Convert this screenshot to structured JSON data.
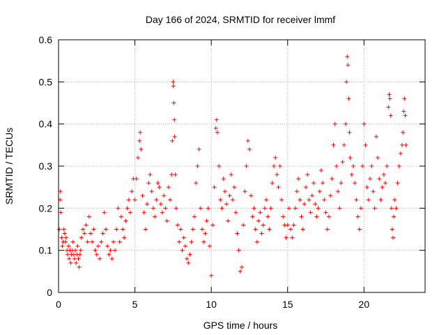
{
  "chart_data": {
    "type": "scatter",
    "title": "Day 166 of 2024, SRMTID for receiver lmmf",
    "xlabel": "GPS time / hours",
    "ylabel": "SRMTID / TECUs",
    "xlim": [
      0,
      24
    ],
    "ylim": [
      0,
      0.6
    ],
    "xticks": [
      0,
      5,
      10,
      15,
      20
    ],
    "yticks": [
      0,
      0.1,
      0.2,
      0.3,
      0.4,
      0.5,
      0.6
    ],
    "xtick_labels": [
      "0",
      "5",
      "10",
      "15",
      "20"
    ],
    "ytick_labels": [
      "0",
      "0.1",
      "0.2",
      "0.3",
      "0.4",
      "0.5",
      "0.6"
    ],
    "grid": true,
    "marker": "+",
    "marker_color": "#ff0000",
    "series": [
      {
        "name": "SRMTID",
        "points": [
          [
            0.05,
            0.15
          ],
          [
            0.1,
            0.22
          ],
          [
            0.12,
            0.24
          ],
          [
            0.15,
            0.19
          ],
          [
            0.2,
            0.13
          ],
          [
            0.25,
            0.11
          ],
          [
            0.3,
            0.12
          ],
          [
            0.35,
            0.15
          ],
          [
            0.4,
            0.14
          ],
          [
            0.45,
            0.12
          ],
          [
            0.5,
            0.13
          ],
          [
            0.55,
            0.1
          ],
          [
            0.6,
            0.09
          ],
          [
            0.65,
            0.11
          ],
          [
            0.7,
            0.08
          ],
          [
            0.75,
            0.1
          ],
          [
            0.8,
            0.07
          ],
          [
            0.85,
            0.09
          ],
          [
            0.9,
            0.1
          ],
          [
            0.95,
            0.12
          ],
          [
            1.0,
            0.09
          ],
          [
            1.05,
            0.08
          ],
          [
            1.1,
            0.1
          ],
          [
            1.15,
            0.07
          ],
          [
            1.2,
            0.09
          ],
          [
            1.25,
            0.11
          ],
          [
            1.3,
            0.08
          ],
          [
            1.35,
            0.06
          ],
          [
            1.4,
            0.09
          ],
          [
            1.45,
            0.1
          ],
          [
            1.5,
            0.13
          ],
          [
            1.6,
            0.15
          ],
          [
            1.7,
            0.14
          ],
          [
            1.8,
            0.16
          ],
          [
            1.9,
            0.12
          ],
          [
            2.0,
            0.18
          ],
          [
            2.1,
            0.14
          ],
          [
            2.2,
            0.12
          ],
          [
            2.3,
            0.15
          ],
          [
            2.4,
            0.1
          ],
          [
            2.5,
            0.09
          ],
          [
            2.6,
            0.11
          ],
          [
            2.7,
            0.08
          ],
          [
            2.8,
            0.12
          ],
          [
            2.9,
            0.14
          ],
          [
            3.0,
            0.19
          ],
          [
            3.1,
            0.15
          ],
          [
            3.2,
            0.11
          ],
          [
            3.3,
            0.09
          ],
          [
            3.4,
            0.1
          ],
          [
            3.5,
            0.08
          ],
          [
            3.6,
            0.12
          ],
          [
            3.7,
            0.1
          ],
          [
            3.8,
            0.15
          ],
          [
            3.9,
            0.2
          ],
          [
            4.0,
            0.12
          ],
          [
            4.1,
            0.18
          ],
          [
            4.2,
            0.15
          ],
          [
            4.3,
            0.13
          ],
          [
            4.4,
            0.17
          ],
          [
            4.5,
            0.2
          ],
          [
            4.6,
            0.22
          ],
          [
            4.7,
            0.19
          ],
          [
            4.8,
            0.24
          ],
          [
            4.9,
            0.27
          ],
          [
            5.0,
            0.22
          ],
          [
            5.1,
            0.27
          ],
          [
            5.2,
            0.32
          ],
          [
            5.3,
            0.36
          ],
          [
            5.35,
            0.38
          ],
          [
            5.4,
            0.34
          ],
          [
            5.5,
            0.23
          ],
          [
            5.6,
            0.19
          ],
          [
            5.7,
            0.15
          ],
          [
            5.8,
            0.21
          ],
          [
            5.9,
            0.26
          ],
          [
            6.0,
            0.28
          ],
          [
            6.1,
            0.24
          ],
          [
            6.2,
            0.2
          ],
          [
            6.3,
            0.18
          ],
          [
            6.4,
            0.22
          ],
          [
            6.5,
            0.26
          ],
          [
            6.6,
            0.25
          ],
          [
            6.7,
            0.21
          ],
          [
            6.8,
            0.19
          ],
          [
            6.9,
            0.23
          ],
          [
            7.0,
            0.2
          ],
          [
            7.1,
            0.17
          ],
          [
            7.2,
            0.25
          ],
          [
            7.3,
            0.22
          ],
          [
            7.4,
            0.28
          ],
          [
            7.45,
            0.36
          ],
          [
            7.5,
            0.5
          ],
          [
            7.52,
            0.49
          ],
          [
            7.55,
            0.45
          ],
          [
            7.58,
            0.41
          ],
          [
            7.6,
            0.37
          ],
          [
            7.65,
            0.28
          ],
          [
            7.7,
            0.2
          ],
          [
            7.8,
            0.16
          ],
          [
            7.9,
            0.12
          ],
          [
            8.0,
            0.15
          ],
          [
            8.1,
            0.1
          ],
          [
            8.2,
            0.13
          ],
          [
            8.3,
            0.11
          ],
          [
            8.4,
            0.08
          ],
          [
            8.5,
            0.07
          ],
          [
            8.6,
            0.09
          ],
          [
            8.7,
            0.12
          ],
          [
            8.8,
            0.15
          ],
          [
            8.9,
            0.18
          ],
          [
            9.0,
            0.26
          ],
          [
            9.1,
            0.3
          ],
          [
            9.2,
            0.34
          ],
          [
            9.3,
            0.2
          ],
          [
            9.4,
            0.15
          ],
          [
            9.5,
            0.12
          ],
          [
            9.6,
            0.14
          ],
          [
            9.7,
            0.17
          ],
          [
            9.8,
            0.2
          ],
          [
            9.9,
            0.11
          ],
          [
            10.0,
            0.04
          ],
          [
            10.1,
            0.16
          ],
          [
            10.2,
            0.25
          ],
          [
            10.3,
            0.39
          ],
          [
            10.35,
            0.41
          ],
          [
            10.4,
            0.38
          ],
          [
            10.5,
            0.3
          ],
          [
            10.6,
            0.22
          ],
          [
            10.7,
            0.2
          ],
          [
            10.8,
            0.27
          ],
          [
            10.9,
            0.24
          ],
          [
            11.0,
            0.21
          ],
          [
            11.1,
            0.17
          ],
          [
            11.2,
            0.23
          ],
          [
            11.3,
            0.28
          ],
          [
            11.4,
            0.22
          ],
          [
            11.5,
            0.25
          ],
          [
            11.6,
            0.19
          ],
          [
            11.7,
            0.14
          ],
          [
            11.8,
            0.1
          ],
          [
            11.9,
            0.05
          ],
          [
            12.0,
            0.06
          ],
          [
            12.1,
            0.16
          ],
          [
            12.2,
            0.24
          ],
          [
            12.3,
            0.3
          ],
          [
            12.4,
            0.36
          ],
          [
            12.5,
            0.34
          ],
          [
            12.6,
            0.23
          ],
          [
            12.7,
            0.18
          ],
          [
            12.8,
            0.2
          ],
          [
            12.9,
            0.15
          ],
          [
            13.0,
            0.12
          ],
          [
            13.1,
            0.17
          ],
          [
            13.2,
            0.19
          ],
          [
            13.3,
            0.14
          ],
          [
            13.4,
            0.16
          ],
          [
            13.5,
            0.2
          ],
          [
            13.6,
            0.22
          ],
          [
            13.7,
            0.18
          ],
          [
            13.8,
            0.15
          ],
          [
            13.9,
            0.2
          ],
          [
            14.0,
            0.26
          ],
          [
            14.1,
            0.3
          ],
          [
            14.2,
            0.32
          ],
          [
            14.3,
            0.28
          ],
          [
            14.4,
            0.25
          ],
          [
            14.5,
            0.3
          ],
          [
            14.6,
            0.22
          ],
          [
            14.7,
            0.18
          ],
          [
            14.8,
            0.16
          ],
          [
            14.9,
            0.13
          ],
          [
            15.0,
            0.16
          ],
          [
            15.1,
            0.2
          ],
          [
            15.2,
            0.15
          ],
          [
            15.3,
            0.13
          ],
          [
            15.4,
            0.16
          ],
          [
            15.5,
            0.2
          ],
          [
            15.6,
            0.24
          ],
          [
            15.7,
            0.27
          ],
          [
            15.8,
            0.22
          ],
          [
            15.9,
            0.18
          ],
          [
            16.0,
            0.15
          ],
          [
            16.1,
            0.21
          ],
          [
            16.2,
            0.25
          ],
          [
            16.3,
            0.28
          ],
          [
            16.4,
            0.22
          ],
          [
            16.5,
            0.19
          ],
          [
            16.6,
            0.23
          ],
          [
            16.7,
            0.26
          ],
          [
            16.8,
            0.21
          ],
          [
            16.9,
            0.18
          ],
          [
            17.0,
            0.2
          ],
          [
            17.1,
            0.24
          ],
          [
            17.2,
            0.29
          ],
          [
            17.3,
            0.26
          ],
          [
            17.4,
            0.22
          ],
          [
            17.5,
            0.19
          ],
          [
            17.6,
            0.15
          ],
          [
            17.7,
            0.18
          ],
          [
            17.8,
            0.23
          ],
          [
            17.9,
            0.27
          ],
          [
            18.0,
            0.35
          ],
          [
            18.1,
            0.4
          ],
          [
            18.2,
            0.3
          ],
          [
            18.3,
            0.24
          ],
          [
            18.4,
            0.2
          ],
          [
            18.5,
            0.26
          ],
          [
            18.6,
            0.31
          ],
          [
            18.7,
            0.35
          ],
          [
            18.8,
            0.4
          ],
          [
            18.85,
            0.5
          ],
          [
            18.9,
            0.56
          ],
          [
            18.95,
            0.54
          ],
          [
            19.0,
            0.46
          ],
          [
            19.05,
            0.38
          ],
          [
            19.1,
            0.32
          ],
          [
            19.2,
            0.28
          ],
          [
            19.3,
            0.3
          ],
          [
            19.4,
            0.26
          ],
          [
            19.5,
            0.22
          ],
          [
            19.6,
            0.18
          ],
          [
            19.7,
            0.15
          ],
          [
            19.8,
            0.2
          ],
          [
            19.9,
            0.3
          ],
          [
            20.0,
            0.4
          ],
          [
            20.1,
            0.35
          ],
          [
            20.2,
            0.25
          ],
          [
            20.3,
            0.22
          ],
          [
            20.4,
            0.27
          ],
          [
            20.5,
            0.3
          ],
          [
            20.6,
            0.24
          ],
          [
            20.7,
            0.2
          ],
          [
            20.8,
            0.37
          ],
          [
            20.9,
            0.32
          ],
          [
            21.0,
            0.27
          ],
          [
            21.1,
            0.22
          ],
          [
            21.2,
            0.25
          ],
          [
            21.3,
            0.28
          ],
          [
            21.4,
            0.26
          ],
          [
            21.5,
            0.3
          ],
          [
            21.6,
            0.44
          ],
          [
            21.65,
            0.47
          ],
          [
            21.7,
            0.46
          ],
          [
            21.75,
            0.42
          ],
          [
            21.8,
            0.2
          ],
          [
            21.85,
            0.15
          ],
          [
            21.9,
            0.13
          ],
          [
            21.95,
            0.18
          ],
          [
            22.0,
            0.22
          ],
          [
            22.1,
            0.2
          ],
          [
            22.2,
            0.26
          ],
          [
            22.3,
            0.3
          ],
          [
            22.4,
            0.33
          ],
          [
            22.5,
            0.35
          ],
          [
            22.55,
            0.38
          ],
          [
            22.6,
            0.43
          ],
          [
            22.65,
            0.46
          ],
          [
            22.7,
            0.42
          ],
          [
            22.75,
            0.35
          ]
        ]
      }
    ]
  }
}
